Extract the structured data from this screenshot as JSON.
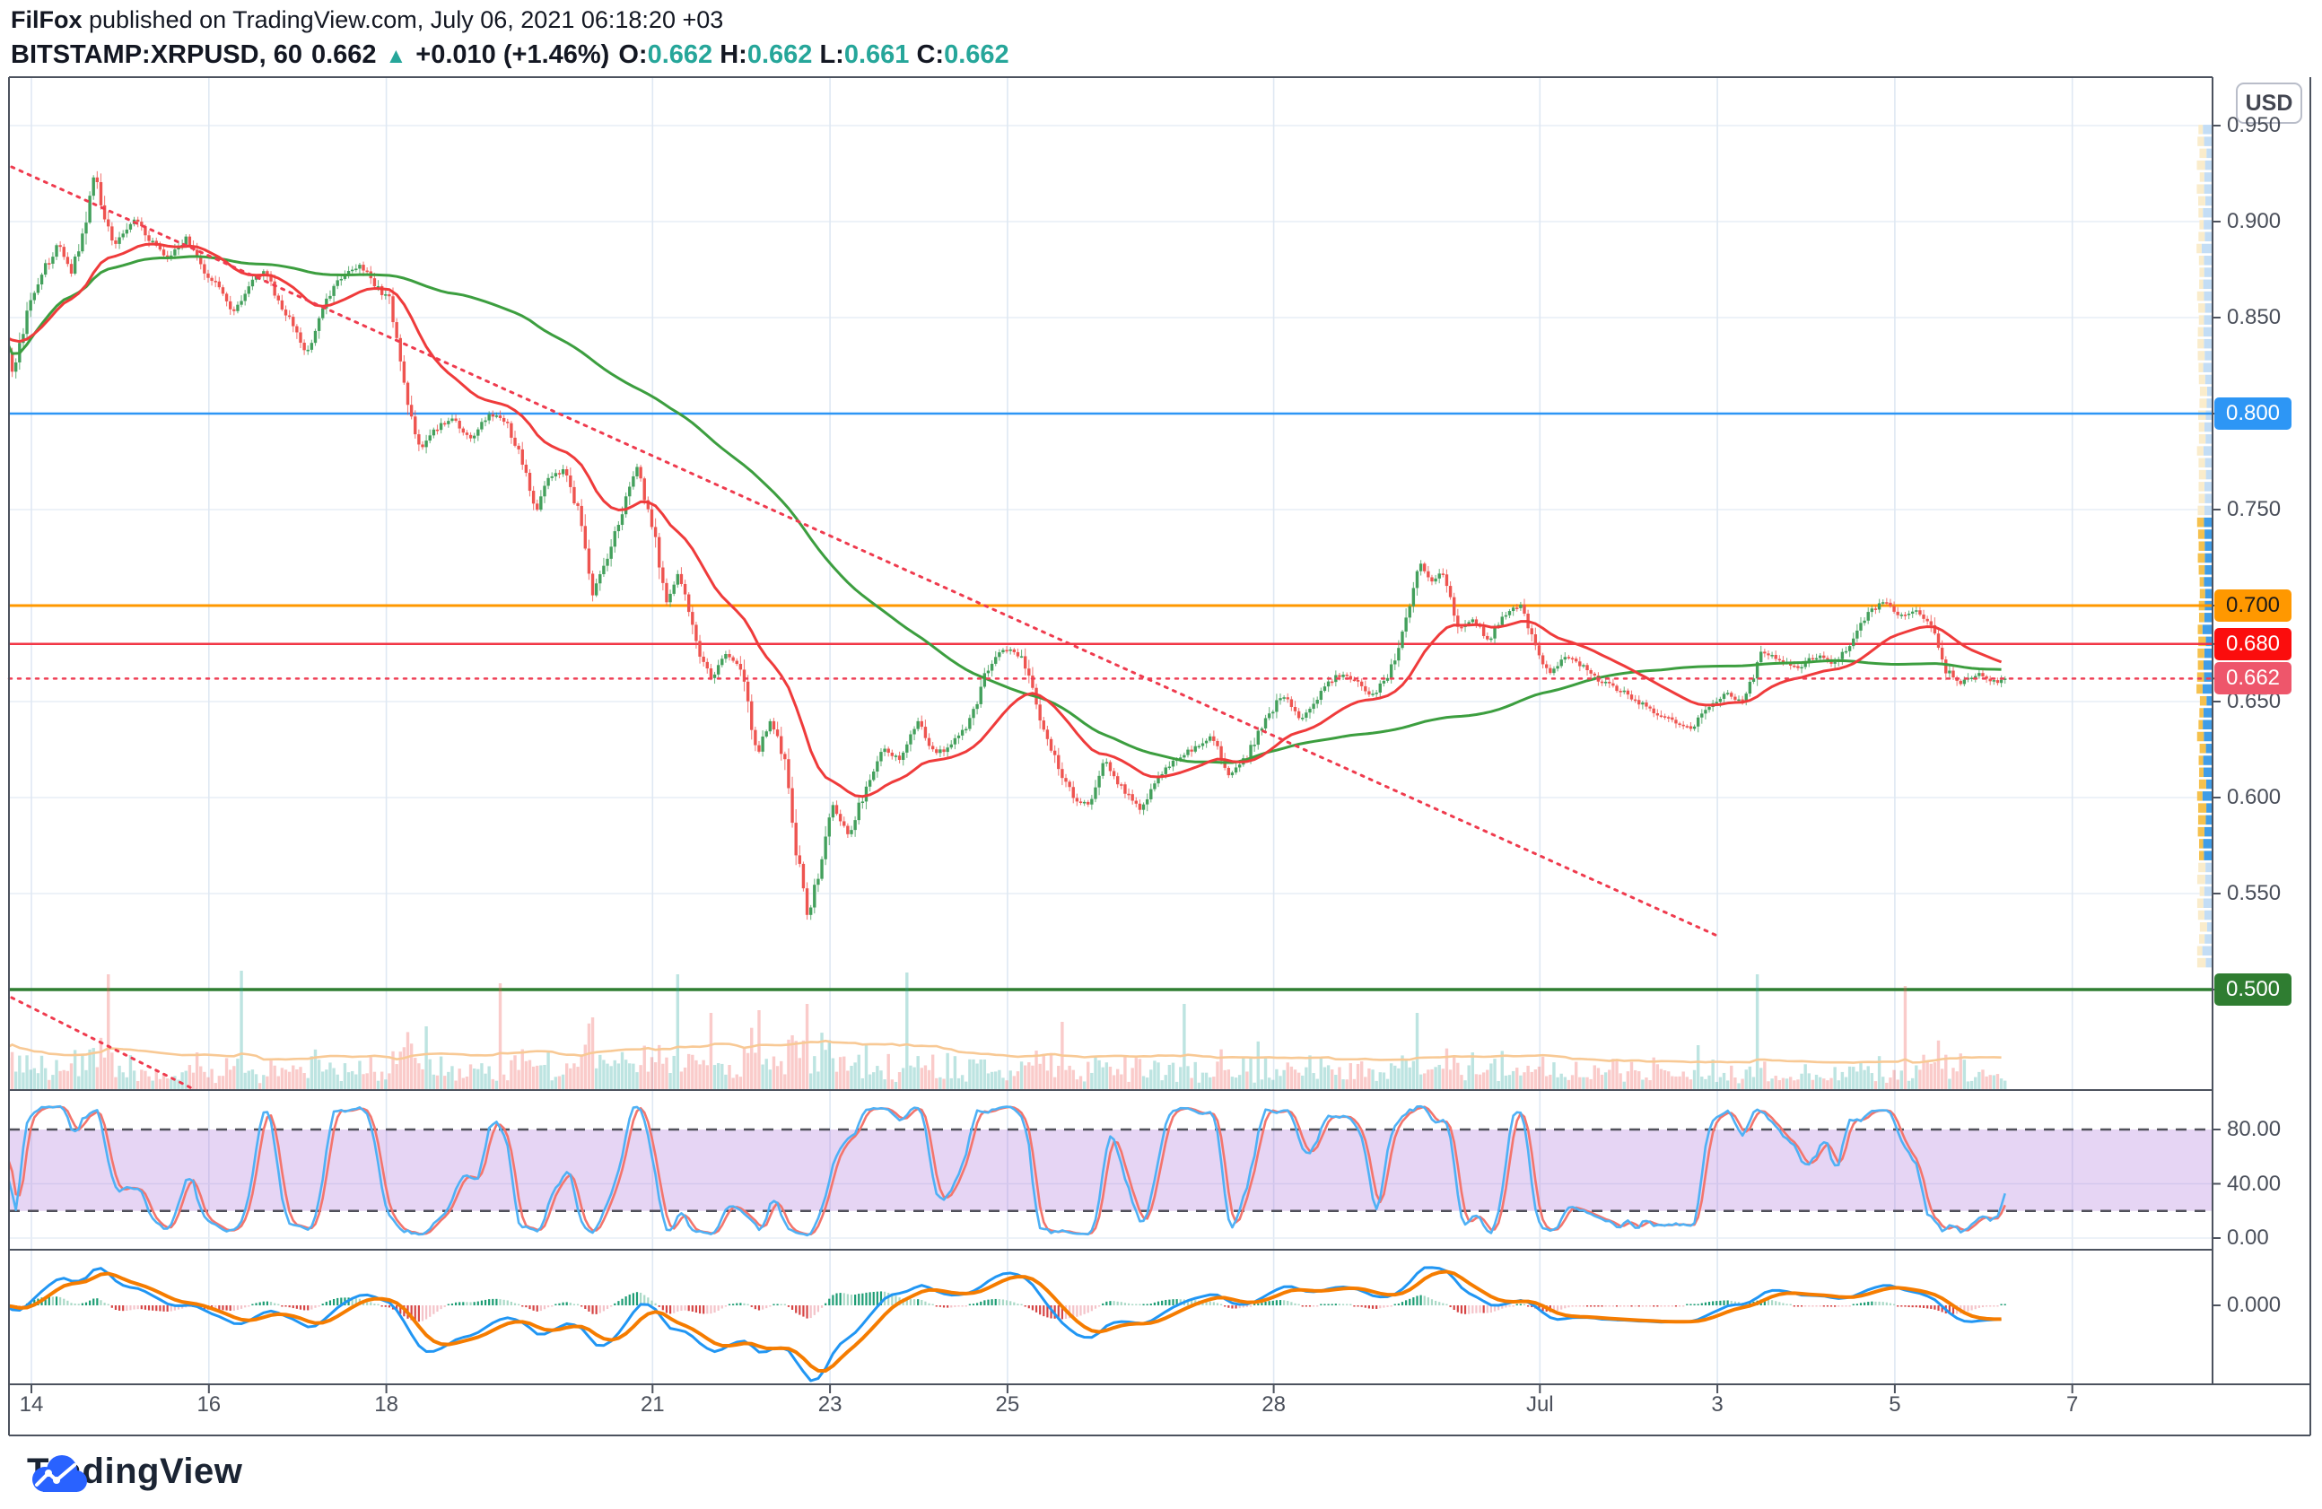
{
  "header": {
    "byline_bold": "FilFox",
    "byline_rest": " published on TradingView.com, July 06, 2021 06:18:20 +03",
    "symbol": "BITSTAMP:XRPUSD, 60",
    "last_price": "0.662",
    "direction_icon": "▲",
    "change": "+0.010 (+1.46%)",
    "ohlc": [
      {
        "label": "O:",
        "value": "0.662"
      },
      {
        "label": "H:",
        "value": "0.662"
      },
      {
        "label": "L:",
        "value": "0.661"
      },
      {
        "label": "C:",
        "value": "0.662"
      }
    ]
  },
  "price_axis": {
    "currency": "USD",
    "plain_ticks": [
      {
        "text": "0.950",
        "price": 0.95
      },
      {
        "text": "0.900",
        "price": 0.9
      },
      {
        "text": "0.850",
        "price": 0.85
      },
      {
        "text": "0.750",
        "price": 0.75
      },
      {
        "text": "0.650",
        "price": 0.65
      },
      {
        "text": "0.600",
        "price": 0.6
      },
      {
        "text": "0.550",
        "price": 0.55
      }
    ],
    "label_boxes": [
      {
        "text": "0.800",
        "price": 0.8,
        "bg": "#2d96f5",
        "fg": "#ffffff"
      },
      {
        "text": "0.700",
        "price": 0.7,
        "bg": "#ff9800",
        "fg": "#1a1a1a"
      },
      {
        "text": "0.680",
        "price": 0.68,
        "bg": "#fb0d0d",
        "fg": "#ffffff"
      },
      {
        "text": "0.662",
        "price": 0.662,
        "bg": "#ee566b",
        "fg": "#ffffff"
      },
      {
        "text": "0.500",
        "price": 0.5,
        "bg": "#2f7d31",
        "fg": "#ffffff"
      }
    ],
    "stoch_ticks": [
      {
        "text": "80.00",
        "value": 80
      },
      {
        "text": "40.00",
        "value": 40
      },
      {
        "text": "0.00",
        "value": 0
      }
    ],
    "macd_ticks": [
      {
        "text": "0.000",
        "value": 0
      }
    ]
  },
  "time_axis": {
    "labels": [
      {
        "text": "14",
        "day": 14
      },
      {
        "text": "16",
        "day": 16
      },
      {
        "text": "18",
        "day": 18
      },
      {
        "text": "21",
        "day": 21
      },
      {
        "text": "23",
        "day": 23
      },
      {
        "text": "25",
        "day": 25
      },
      {
        "text": "28",
        "day": 28
      },
      {
        "text": "Jul",
        "day": 31
      },
      {
        "text": "3",
        "day": 33
      },
      {
        "text": "5",
        "day": 35
      },
      {
        "text": "7",
        "day": 37
      }
    ]
  },
  "branding": {
    "logo_text": "TradingView"
  },
  "chart_data": {
    "type": "candlestick",
    "symbol": "BITSTAMP:XRPUSD",
    "interval_minutes": 60,
    "visible_days": "June 14 - July 7, 2021",
    "last": {
      "open": 0.662,
      "high": 0.662,
      "low": 0.661,
      "close": 0.662,
      "change": 0.01,
      "change_pct": 1.46
    },
    "ylim": [
      0.448,
      0.972
    ],
    "grid_step": 0.05,
    "price_path": [
      [
        13.7,
        0.838
      ],
      [
        13.8,
        0.82
      ],
      [
        13.95,
        0.852
      ],
      [
        14.1,
        0.872
      ],
      [
        14.3,
        0.888
      ],
      [
        14.45,
        0.874
      ],
      [
        14.6,
        0.896
      ],
      [
        14.72,
        0.928
      ],
      [
        14.82,
        0.9
      ],
      [
        14.95,
        0.888
      ],
      [
        15.15,
        0.902
      ],
      [
        15.35,
        0.89
      ],
      [
        15.55,
        0.88
      ],
      [
        15.75,
        0.892
      ],
      [
        15.95,
        0.874
      ],
      [
        16.1,
        0.866
      ],
      [
        16.28,
        0.852
      ],
      [
        16.45,
        0.868
      ],
      [
        16.62,
        0.874
      ],
      [
        16.8,
        0.858
      ],
      [
        16.95,
        0.846
      ],
      [
        17.1,
        0.83
      ],
      [
        17.3,
        0.856
      ],
      [
        17.5,
        0.872
      ],
      [
        17.7,
        0.877
      ],
      [
        17.9,
        0.866
      ],
      [
        18.05,
        0.858
      ],
      [
        18.22,
        0.81
      ],
      [
        18.38,
        0.78
      ],
      [
        18.55,
        0.792
      ],
      [
        18.75,
        0.798
      ],
      [
        18.95,
        0.786
      ],
      [
        19.15,
        0.8
      ],
      [
        19.35,
        0.796
      ],
      [
        19.55,
        0.772
      ],
      [
        19.68,
        0.748
      ],
      [
        19.82,
        0.766
      ],
      [
        20.0,
        0.77
      ],
      [
        20.18,
        0.748
      ],
      [
        20.32,
        0.706
      ],
      [
        20.48,
        0.722
      ],
      [
        20.65,
        0.748
      ],
      [
        20.82,
        0.772
      ],
      [
        21.0,
        0.742
      ],
      [
        21.15,
        0.7
      ],
      [
        21.3,
        0.718
      ],
      [
        21.48,
        0.682
      ],
      [
        21.65,
        0.662
      ],
      [
        21.82,
        0.674
      ],
      [
        22.0,
        0.668
      ],
      [
        22.18,
        0.622
      ],
      [
        22.32,
        0.64
      ],
      [
        22.48,
        0.622
      ],
      [
        22.62,
        0.572
      ],
      [
        22.75,
        0.538
      ],
      [
        22.88,
        0.562
      ],
      [
        23.02,
        0.596
      ],
      [
        23.2,
        0.58
      ],
      [
        23.4,
        0.604
      ],
      [
        23.6,
        0.626
      ],
      [
        23.8,
        0.62
      ],
      [
        24.0,
        0.64
      ],
      [
        24.18,
        0.622
      ],
      [
        24.38,
        0.628
      ],
      [
        24.58,
        0.64
      ],
      [
        24.78,
        0.668
      ],
      [
        24.98,
        0.678
      ],
      [
        25.18,
        0.672
      ],
      [
        25.38,
        0.64
      ],
      [
        25.55,
        0.618
      ],
      [
        25.75,
        0.6
      ],
      [
        25.92,
        0.596
      ],
      [
        26.1,
        0.62
      ],
      [
        26.3,
        0.604
      ],
      [
        26.5,
        0.594
      ],
      [
        26.7,
        0.61
      ],
      [
        26.9,
        0.62
      ],
      [
        27.1,
        0.626
      ],
      [
        27.3,
        0.632
      ],
      [
        27.5,
        0.612
      ],
      [
        27.7,
        0.622
      ],
      [
        27.9,
        0.64
      ],
      [
        28.1,
        0.654
      ],
      [
        28.3,
        0.64
      ],
      [
        28.5,
        0.652
      ],
      [
        28.7,
        0.664
      ],
      [
        28.9,
        0.662
      ],
      [
        29.1,
        0.652
      ],
      [
        29.3,
        0.664
      ],
      [
        29.5,
        0.694
      ],
      [
        29.65,
        0.724
      ],
      [
        29.78,
        0.712
      ],
      [
        29.92,
        0.718
      ],
      [
        30.08,
        0.688
      ],
      [
        30.25,
        0.692
      ],
      [
        30.42,
        0.682
      ],
      [
        30.6,
        0.696
      ],
      [
        30.78,
        0.7
      ],
      [
        30.95,
        0.678
      ],
      [
        31.12,
        0.664
      ],
      [
        31.3,
        0.674
      ],
      [
        31.5,
        0.668
      ],
      [
        31.7,
        0.66
      ],
      [
        31.9,
        0.656
      ],
      [
        32.1,
        0.65
      ],
      [
        32.3,
        0.644
      ],
      [
        32.5,
        0.64
      ],
      [
        32.7,
        0.636
      ],
      [
        32.9,
        0.648
      ],
      [
        33.1,
        0.654
      ],
      [
        33.3,
        0.65
      ],
      [
        33.5,
        0.676
      ],
      [
        33.7,
        0.672
      ],
      [
        33.9,
        0.667
      ],
      [
        34.1,
        0.674
      ],
      [
        34.3,
        0.67
      ],
      [
        34.5,
        0.68
      ],
      [
        34.7,
        0.696
      ],
      [
        34.88,
        0.702
      ],
      [
        35.05,
        0.694
      ],
      [
        35.25,
        0.698
      ],
      [
        35.42,
        0.69
      ],
      [
        35.58,
        0.666
      ],
      [
        35.75,
        0.66
      ],
      [
        35.95,
        0.664
      ],
      [
        36.1,
        0.66
      ],
      [
        36.26,
        0.662
      ]
    ],
    "levels": [
      {
        "price": 0.8,
        "color": "#2d96f5",
        "style": "solid",
        "width": 2.5
      },
      {
        "price": 0.7,
        "color": "#ff9800",
        "style": "solid",
        "width": 3
      },
      {
        "price": 0.68,
        "color": "#f23645",
        "style": "solid",
        "width": 2.5
      },
      {
        "price": 0.662,
        "color": "#ef4056",
        "style": "dotted",
        "width": 2.5
      },
      {
        "price": 0.5,
        "color": "#2f7d31",
        "style": "solid",
        "width": 3.5
      }
    ],
    "trendlines": [
      {
        "d1": 13.777,
        "p1": 0.9285,
        "d2": 33.0,
        "p2": 0.528,
        "color": "#ef3b4e",
        "style": "dotted",
        "width": 3
      },
      {
        "d1": 13.777,
        "p1": 0.4958,
        "d2": 15.95,
        "p2": 0.4453,
        "color": "#ef3b4e",
        "style": "dotted",
        "width": 3
      }
    ],
    "moving_averages": [
      {
        "name": "fast",
        "type": "EMA",
        "length": 30,
        "color": "#ef3b3b"
      },
      {
        "name": "slow",
        "type": "SMA",
        "length": 120,
        "color": "#3c9e3f"
      }
    ],
    "volume": {
      "ma_color": "#f8c995",
      "up_color": "rgba(38,166,154,0.30)",
      "down_color": "rgba(239,83,80,0.30)",
      "spikes": [
        [
          14.88,
          128
        ],
        [
          16.35,
          132
        ],
        [
          18.45,
          70
        ],
        [
          19.3,
          118
        ],
        [
          20.32,
          80
        ],
        [
          21.3,
          128
        ],
        [
          21.65,
          85
        ],
        [
          22.2,
          88
        ],
        [
          22.75,
          95
        ],
        [
          23.85,
          130
        ],
        [
          25.6,
          75
        ],
        [
          27.0,
          95
        ],
        [
          29.6,
          85
        ],
        [
          33.45,
          128
        ],
        [
          35.1,
          115
        ]
      ]
    },
    "volume_profile": {
      "anchor": "right",
      "faded_above": 0.744,
      "faded_below": 0.565,
      "colors": {
        "buy": "#3f9de8",
        "sell": "#f5c14d",
        "buy_faded": "#c3ddf5",
        "sell_faded": "#faeccb"
      },
      "envelope": [
        [
          0.948,
          16
        ],
        [
          0.938,
          34
        ],
        [
          0.928,
          60
        ],
        [
          0.92,
          82
        ],
        [
          0.912,
          96
        ],
        [
          0.905,
          74
        ],
        [
          0.898,
          108
        ],
        [
          0.89,
          88
        ],
        [
          0.882,
          76
        ],
        [
          0.875,
          118
        ],
        [
          0.868,
          132
        ],
        [
          0.86,
          104
        ],
        [
          0.852,
          82
        ],
        [
          0.845,
          66
        ],
        [
          0.838,
          58
        ],
        [
          0.83,
          50
        ],
        [
          0.822,
          44
        ],
        [
          0.815,
          40
        ],
        [
          0.808,
          52
        ],
        [
          0.8,
          62
        ],
        [
          0.793,
          42
        ],
        [
          0.785,
          30
        ],
        [
          0.778,
          24
        ],
        [
          0.77,
          20
        ],
        [
          0.762,
          18
        ],
        [
          0.755,
          22
        ],
        [
          0.748,
          28
        ],
        [
          0.74,
          38
        ],
        [
          0.732,
          48
        ],
        [
          0.725,
          56
        ],
        [
          0.718,
          72
        ],
        [
          0.71,
          88
        ],
        [
          0.703,
          108
        ],
        [
          0.695,
          128
        ],
        [
          0.688,
          150
        ],
        [
          0.68,
          196
        ],
        [
          0.673,
          228
        ],
        [
          0.666,
          248
        ],
        [
          0.659,
          252
        ],
        [
          0.652,
          232
        ],
        [
          0.645,
          212
        ],
        [
          0.638,
          188
        ],
        [
          0.63,
          162
        ],
        [
          0.622,
          140
        ],
        [
          0.615,
          126
        ],
        [
          0.608,
          112
        ],
        [
          0.6,
          96
        ],
        [
          0.592,
          80
        ],
        [
          0.585,
          68
        ],
        [
          0.578,
          60
        ],
        [
          0.57,
          52
        ],
        [
          0.562,
          44
        ],
        [
          0.554,
          36
        ],
        [
          0.546,
          28
        ],
        [
          0.538,
          22
        ],
        [
          0.53,
          16
        ],
        [
          0.522,
          11
        ],
        [
          0.515,
          8
        ]
      ]
    },
    "stochastic": {
      "k": 14,
      "k_smooth": 3,
      "d": 3,
      "upper_band": 80,
      "lower_band": 40,
      "zero": 0,
      "band_fill": "rgba(165,105,215,0.28)",
      "k_color": "#4fb1f5",
      "d_color": "#f3756d",
      "dashed_levels": [
        80,
        20
      ]
    },
    "macd": {
      "fast": 12,
      "slow": 26,
      "signal": 9,
      "macd_color": "#2196f3",
      "signal_color": "#f57c00",
      "hist_colors": {
        "up_grow": "#1d9d74",
        "up_fall": "#a9d9c6",
        "down_fall": "#d64545",
        "down_grow": "#f4c3c9"
      }
    }
  }
}
